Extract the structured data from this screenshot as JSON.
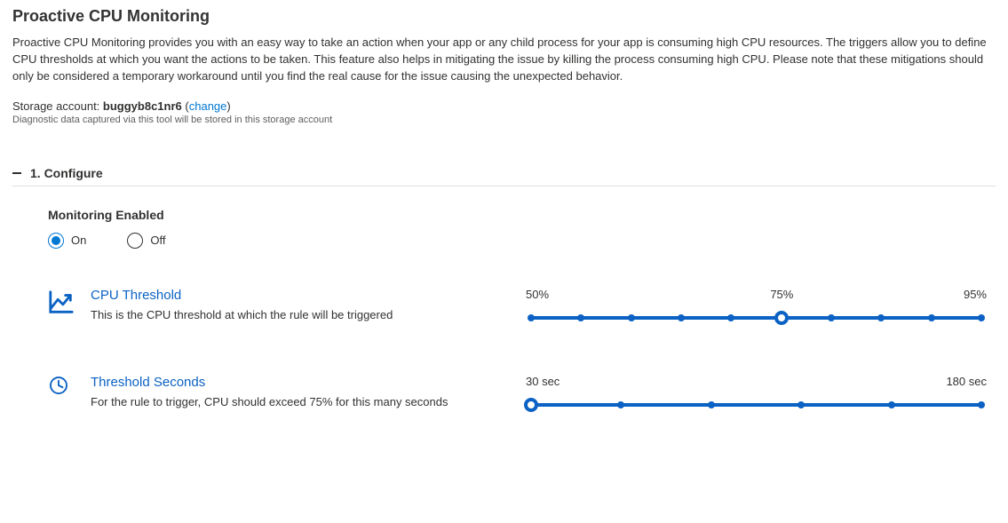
{
  "colors": {
    "accent": "#0b62c4",
    "link": "#0078d4",
    "text": "#323130",
    "muted": "#605e5c",
    "border": "#e1dfdd",
    "background": "#ffffff"
  },
  "header": {
    "title": "Proactive CPU Monitoring",
    "description": "Proactive CPU Monitoring provides you with an easy way to take an action when your app or any child process for your app is consuming high CPU resources. The triggers allow you to define CPU thresholds at which you want the actions to be taken. This feature also helps in mitigating the issue by killing the process consuming high CPU. Please note that these mitigations should only be considered a temporary workaround until you find the real cause for the issue causing the unexpected behavior."
  },
  "storage": {
    "label": "Storage account: ",
    "account": "buggyb8c1nr6",
    "change": "change",
    "note": "Diagnostic data captured via this tool will be stored in this storage account"
  },
  "section": {
    "title": "1. Configure"
  },
  "monitoring": {
    "label": "Monitoring Enabled",
    "options": {
      "on": "On",
      "off": "Off"
    },
    "selected": "on"
  },
  "cpuThreshold": {
    "title": "CPU Threshold",
    "desc": "This is the CPU threshold at which the rule will be triggered",
    "min": 50,
    "max": 95,
    "value": 75,
    "ticks": [
      50,
      55,
      60,
      65,
      70,
      75,
      80,
      85,
      90,
      95
    ],
    "labels": [
      {
        "text": "50%",
        "at": 50
      },
      {
        "text": "75%",
        "at": 75
      },
      {
        "text": "95%",
        "at": 95
      }
    ]
  },
  "thresholdSeconds": {
    "title": "Threshold Seconds",
    "desc": "For the rule to trigger, CPU should exceed 75% for this many seconds",
    "min": 30,
    "max": 180,
    "value": 30,
    "ticks": [
      30,
      60,
      90,
      120,
      150,
      180
    ],
    "labels": [
      {
        "text": "30 sec",
        "at": 30
      },
      {
        "text": "180 sec",
        "at": 180
      }
    ]
  }
}
